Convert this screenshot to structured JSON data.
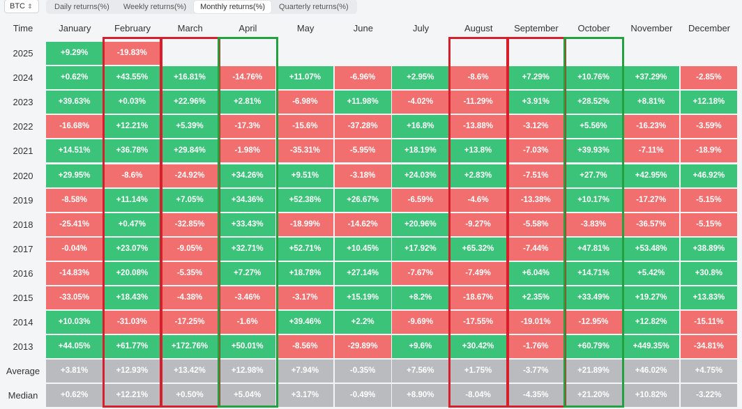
{
  "toolbar": {
    "asset": "BTC",
    "tabs": [
      {
        "label": "Daily returns(%)",
        "active": false
      },
      {
        "label": "Weekly returns(%)",
        "active": false
      },
      {
        "label": "Monthly returns(%)",
        "active": true
      },
      {
        "label": "Quarterly returns(%)",
        "active": false
      }
    ]
  },
  "table": {
    "corner": "Time",
    "months": [
      "January",
      "February",
      "March",
      "April",
      "May",
      "June",
      "July",
      "August",
      "September",
      "October",
      "November",
      "December"
    ],
    "rows": [
      {
        "label": "2025",
        "values": [
          "+9.29%",
          "-19.83%",
          "",
          "",
          "",
          "",
          "",
          "",
          "",
          "",
          "",
          ""
        ]
      },
      {
        "label": "2024",
        "values": [
          "+0.62%",
          "+43.55%",
          "+16.81%",
          "-14.76%",
          "+11.07%",
          "-6.96%",
          "+2.95%",
          "-8.6%",
          "+7.29%",
          "+10.76%",
          "+37.29%",
          "-2.85%"
        ]
      },
      {
        "label": "2023",
        "values": [
          "+39.63%",
          "+0.03%",
          "+22.96%",
          "+2.81%",
          "-6.98%",
          "+11.98%",
          "-4.02%",
          "-11.29%",
          "+3.91%",
          "+28.52%",
          "+8.81%",
          "+12.18%"
        ]
      },
      {
        "label": "2022",
        "values": [
          "-16.68%",
          "+12.21%",
          "+5.39%",
          "-17.3%",
          "-15.6%",
          "-37.28%",
          "+16.8%",
          "-13.88%",
          "-3.12%",
          "+5.56%",
          "-16.23%",
          "-3.59%"
        ]
      },
      {
        "label": "2021",
        "values": [
          "+14.51%",
          "+36.78%",
          "+29.84%",
          "-1.98%",
          "-35.31%",
          "-5.95%",
          "+18.19%",
          "+13.8%",
          "-7.03%",
          "+39.93%",
          "-7.11%",
          "-18.9%"
        ]
      },
      {
        "label": "2020",
        "values": [
          "+29.95%",
          "-8.6%",
          "-24.92%",
          "+34.26%",
          "+9.51%",
          "-3.18%",
          "+24.03%",
          "+2.83%",
          "-7.51%",
          "+27.7%",
          "+42.95%",
          "+46.92%"
        ]
      },
      {
        "label": "2019",
        "values": [
          "-8.58%",
          "+11.14%",
          "+7.05%",
          "+34.36%",
          "+52.38%",
          "+26.67%",
          "-6.59%",
          "-4.6%",
          "-13.38%",
          "+10.17%",
          "-17.27%",
          "-5.15%"
        ]
      },
      {
        "label": "2018",
        "values": [
          "-25.41%",
          "+0.47%",
          "-32.85%",
          "+33.43%",
          "-18.99%",
          "-14.62%",
          "+20.96%",
          "-9.27%",
          "-5.58%",
          "-3.83%",
          "-36.57%",
          "-5.15%"
        ]
      },
      {
        "label": "2017",
        "values": [
          "-0.04%",
          "+23.07%",
          "-9.05%",
          "+32.71%",
          "+52.71%",
          "+10.45%",
          "+17.92%",
          "+65.32%",
          "-7.44%",
          "+47.81%",
          "+53.48%",
          "+38.89%"
        ]
      },
      {
        "label": "2016",
        "values": [
          "-14.83%",
          "+20.08%",
          "-5.35%",
          "+7.27%",
          "+18.78%",
          "+27.14%",
          "-7.67%",
          "-7.49%",
          "+6.04%",
          "+14.71%",
          "+5.42%",
          "+30.8%"
        ]
      },
      {
        "label": "2015",
        "values": [
          "-33.05%",
          "+18.43%",
          "-4.38%",
          "-3.46%",
          "-3.17%",
          "+15.19%",
          "+8.2%",
          "-18.67%",
          "+2.35%",
          "+33.49%",
          "+19.27%",
          "+13.83%"
        ]
      },
      {
        "label": "2014",
        "values": [
          "+10.03%",
          "-31.03%",
          "-17.25%",
          "-1.6%",
          "+39.46%",
          "+2.2%",
          "-9.69%",
          "-17.55%",
          "-19.01%",
          "-12.95%",
          "+12.82%",
          "-15.11%"
        ]
      },
      {
        "label": "2013",
        "values": [
          "+44.05%",
          "+61.77%",
          "+172.76%",
          "+50.01%",
          "-8.56%",
          "-29.89%",
          "+9.6%",
          "+30.42%",
          "-1.76%",
          "+60.79%",
          "+449.35%",
          "-34.81%"
        ]
      },
      {
        "label": "Average",
        "values": [
          "+3.81%",
          "+12.93%",
          "+13.42%",
          "+12.98%",
          "+7.94%",
          "-0.35%",
          "+7.56%",
          "+1.75%",
          "-3.77%",
          "+21.89%",
          "+46.02%",
          "+4.75%"
        ],
        "summary": true
      },
      {
        "label": "Median",
        "values": [
          "+0.62%",
          "+12.21%",
          "+0.50%",
          "+5.04%",
          "+3.17%",
          "-0.49%",
          "+8.90%",
          "-8.04%",
          "-4.35%",
          "+21.20%",
          "+10.82%",
          "-3.22%"
        ],
        "summary": true
      }
    ]
  },
  "highlights": [
    {
      "month": "February",
      "color": "red"
    },
    {
      "month": "March",
      "color": "red"
    },
    {
      "month": "April",
      "color": "green"
    },
    {
      "month": "August",
      "color": "red"
    },
    {
      "month": "September",
      "color": "red"
    },
    {
      "month": "October",
      "color": "green"
    }
  ],
  "colors": {
    "positive": "#3cc37a",
    "negative": "#f16f6f",
    "summary": "#b9bbbe",
    "highlight_red": "#d71e2a",
    "highlight_green": "#23a13f"
  }
}
